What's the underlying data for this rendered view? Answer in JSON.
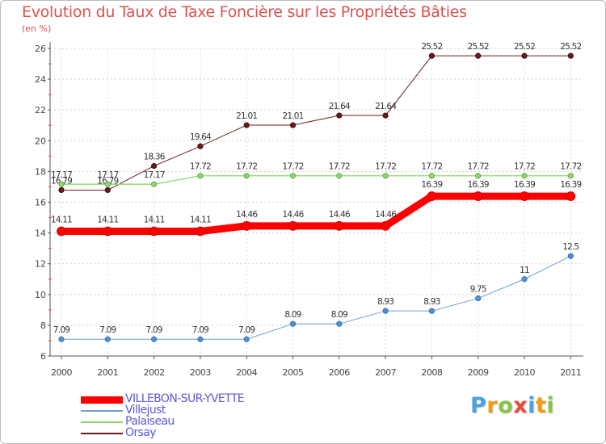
{
  "chart_data": {
    "type": "line",
    "title": "Evolution du Taux de Taxe Foncière sur les Propriétés Bâties",
    "ylabel": "(en %)",
    "xlabel": "",
    "categories": [
      "2000",
      "2001",
      "2002",
      "2003",
      "2004",
      "2005",
      "2006",
      "2007",
      "2008",
      "2009",
      "2010",
      "2011"
    ],
    "ylim": [
      6,
      26
    ],
    "yticks": [
      6,
      8,
      10,
      12,
      14,
      16,
      18,
      20,
      22,
      24,
      26
    ],
    "grid": "horizontal dotted",
    "series": [
      {
        "name": "Orsay",
        "color": "#6b1a1a",
        "values": [
          16.79,
          16.79,
          18.36,
          19.64,
          21.01,
          21.01,
          21.64,
          21.64,
          25.52,
          25.52,
          25.52,
          25.52
        ],
        "labels": [
          "16.79",
          "16.79",
          "18.36",
          "19.64",
          "21.01",
          "21.01",
          "21.64",
          "21.64",
          "25.52",
          "25.52",
          "25.52",
          "25.52"
        ]
      },
      {
        "name": "Palaiseau",
        "color": "#8cd66b",
        "values": [
          17.17,
          17.17,
          17.17,
          17.72,
          17.72,
          17.72,
          17.72,
          17.72,
          17.72,
          17.72,
          17.72,
          17.72
        ],
        "labels": [
          "17.17",
          "17.17",
          "17.17",
          "17.72",
          "17.72",
          "17.72",
          "17.72",
          "17.72",
          "17.72",
          "17.72",
          "17.72",
          "17.72"
        ]
      },
      {
        "name": "VILLEBON-SUR-YVETTE",
        "color": "#ff0000",
        "values": [
          14.11,
          14.11,
          14.11,
          14.11,
          14.46,
          14.46,
          14.46,
          14.46,
          16.39,
          16.39,
          16.39,
          16.39
        ],
        "labels": [
          "14.11",
          "14.11",
          "14.11",
          "14.11",
          "14.46",
          "14.46",
          "14.46",
          "14.46",
          "16.39",
          "16.39",
          "16.39",
          "16.39"
        ]
      },
      {
        "name": "Villejust",
        "color": "#6fa0d0",
        "values": [
          7.09,
          7.09,
          7.09,
          7.09,
          7.09,
          8.09,
          8.09,
          8.93,
          8.93,
          9.75,
          11,
          12.5
        ],
        "labels": [
          "7.09",
          "7.09",
          "7.09",
          "7.09",
          "7.09",
          "8.09",
          "8.09",
          "8.93",
          "8.93",
          "9.75",
          "11",
          "12.5"
        ]
      }
    ],
    "legend": [
      "VILLEBON-SUR-YVETTE",
      "Villejust",
      "Palaiseau",
      "Orsay"
    ],
    "legend_position": "bottom-left"
  },
  "logo": {
    "text": "Proxiti",
    "letters": [
      "P",
      "r",
      "o",
      "x",
      "i",
      "t",
      "i"
    ],
    "colors": [
      "#4aa3df",
      "#f39c12",
      "#8bc34a",
      "#e74c3c",
      "#4aa3df",
      "#f39c12",
      "#8bc34a"
    ]
  }
}
